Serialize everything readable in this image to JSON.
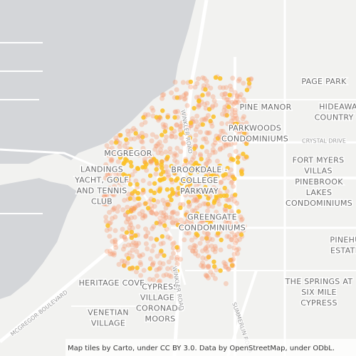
{
  "labels": [
    {
      "lines": [
        "PAGE PARK"
      ]
    },
    {
      "lines": [
        "PINE MANOR"
      ]
    },
    {
      "lines": [
        "HIDEAWA",
        "COUNTRY C"
      ]
    },
    {
      "lines": [
        "PARKWOODS",
        "CONDOMINIUMS"
      ]
    },
    {
      "lines": [
        "MCGREGOR"
      ]
    },
    {
      "lines": [
        "FORT MYERS",
        "VILLAS"
      ]
    },
    {
      "lines": [
        "BROOKDALE -",
        "COLLEGE",
        "PARKWAY"
      ]
    },
    {
      "lines": [
        "LANDINGS",
        "YACHT, GOLF",
        "AND TENNIS",
        "CLUB"
      ]
    },
    {
      "lines": [
        "PINEBROOK",
        "LAKES",
        "CONDOMINIUMS"
      ]
    },
    {
      "lines": [
        "GREENGATE",
        "CONDOMINIUMS"
      ]
    },
    {
      "lines": [
        "PINEHU",
        "ESTATE"
      ]
    },
    {
      "lines": [
        "HERITAGE COVE"
      ]
    },
    {
      "lines": [
        "THE SPRINGS AT",
        "SIX MILE",
        "CYPRESS"
      ]
    },
    {
      "lines": [
        "CYPRESS",
        "VILLAGE -",
        "CORONADO",
        "MOORS"
      ]
    },
    {
      "lines": [
        "VENETIAN",
        "VILLAGE"
      ]
    }
  ],
  "roads": [
    "CRYSTAL DRIVE",
    "WINKLER ROAD",
    "MCGREGOR BOULEVARD",
    "WINKLER ROAD",
    "SUMMERLIN ROAD"
  ],
  "attribution": "Map tiles by Carto, under CC BY 3.0. Data by OpenStreetMap, under ODbL."
}
